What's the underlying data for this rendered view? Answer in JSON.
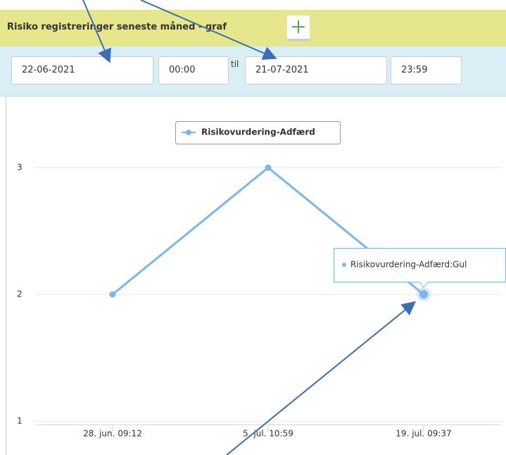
{
  "header": {
    "title": "Risiko registreringer seneste måned - graf"
  },
  "filter": {
    "from_date": "22-06-2021",
    "from_time": "00:00",
    "separator": "til",
    "to_date": "21-07-2021",
    "to_time": "23:59"
  },
  "chart_data": {
    "type": "line",
    "categories": [
      "28. jun. 09:12",
      "5. jul. 10:59",
      "19. jul. 09:37"
    ],
    "series": [
      {
        "name": "Risikovurdering-Adfærd",
        "color": "#7cb5ec",
        "values": [
          2,
          3,
          2
        ]
      }
    ],
    "ylim": [
      1,
      3
    ],
    "yticks": [
      1,
      2,
      3
    ],
    "grid": true,
    "legend": "top",
    "tooltip": "Risikovurdering-Adfærd:Gul"
  }
}
